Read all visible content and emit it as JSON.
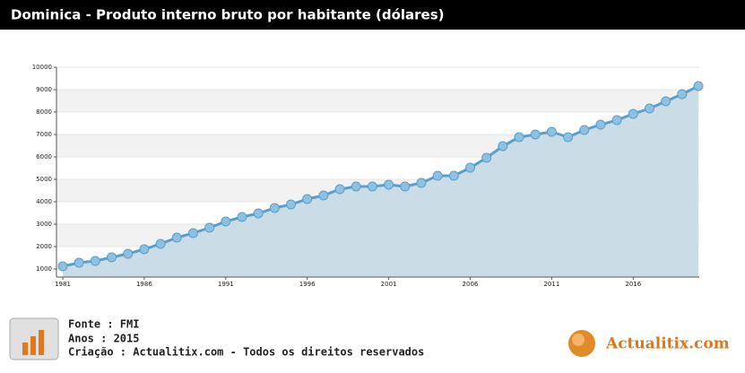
{
  "chart_data": {
    "type": "line",
    "title": "Dominica - Produto interno bruto por habitante (dólares)",
    "x": [
      1981,
      1982,
      1983,
      1984,
      1985,
      1986,
      1987,
      1988,
      1989,
      1990,
      1991,
      1992,
      1993,
      1994,
      1995,
      1996,
      1997,
      1998,
      1999,
      2000,
      2001,
      2002,
      2003,
      2004,
      2005,
      2006,
      2007,
      2008,
      2009,
      2010,
      2011,
      2012,
      2013,
      2014,
      2015,
      2016,
      2017,
      2018,
      2019,
      2020
    ],
    "values": [
      1120,
      1280,
      1360,
      1520,
      1680,
      1880,
      2120,
      2400,
      2600,
      2840,
      3120,
      3320,
      3480,
      3720,
      3880,
      4120,
      4280,
      4560,
      4680,
      4680,
      4760,
      4680,
      4840,
      5160,
      5160,
      5520,
      5960,
      6480,
      6880,
      7000,
      7120,
      6880,
      7200,
      7440,
      7640,
      7920,
      8160,
      8480,
      8800,
      9160
    ],
    "color": "#5a9fcc",
    "xlim": [
      1981,
      2020
    ],
    "xticks": [
      1981,
      1986,
      1991,
      1996,
      2001,
      2006,
      2011,
      2016
    ],
    "ylim": [
      1000,
      10000
    ],
    "yticks": [
      1000,
      2000,
      3000,
      4000,
      5000,
      6000,
      7000,
      8000,
      9000,
      10000
    ],
    "grid": true
  },
  "footer": {
    "source": "Fonte : FMI",
    "years": "Anos : 2015",
    "credit": "Criação : Actualitix.com - Todos os direitos reservados",
    "logo": "Actualitix.com"
  }
}
